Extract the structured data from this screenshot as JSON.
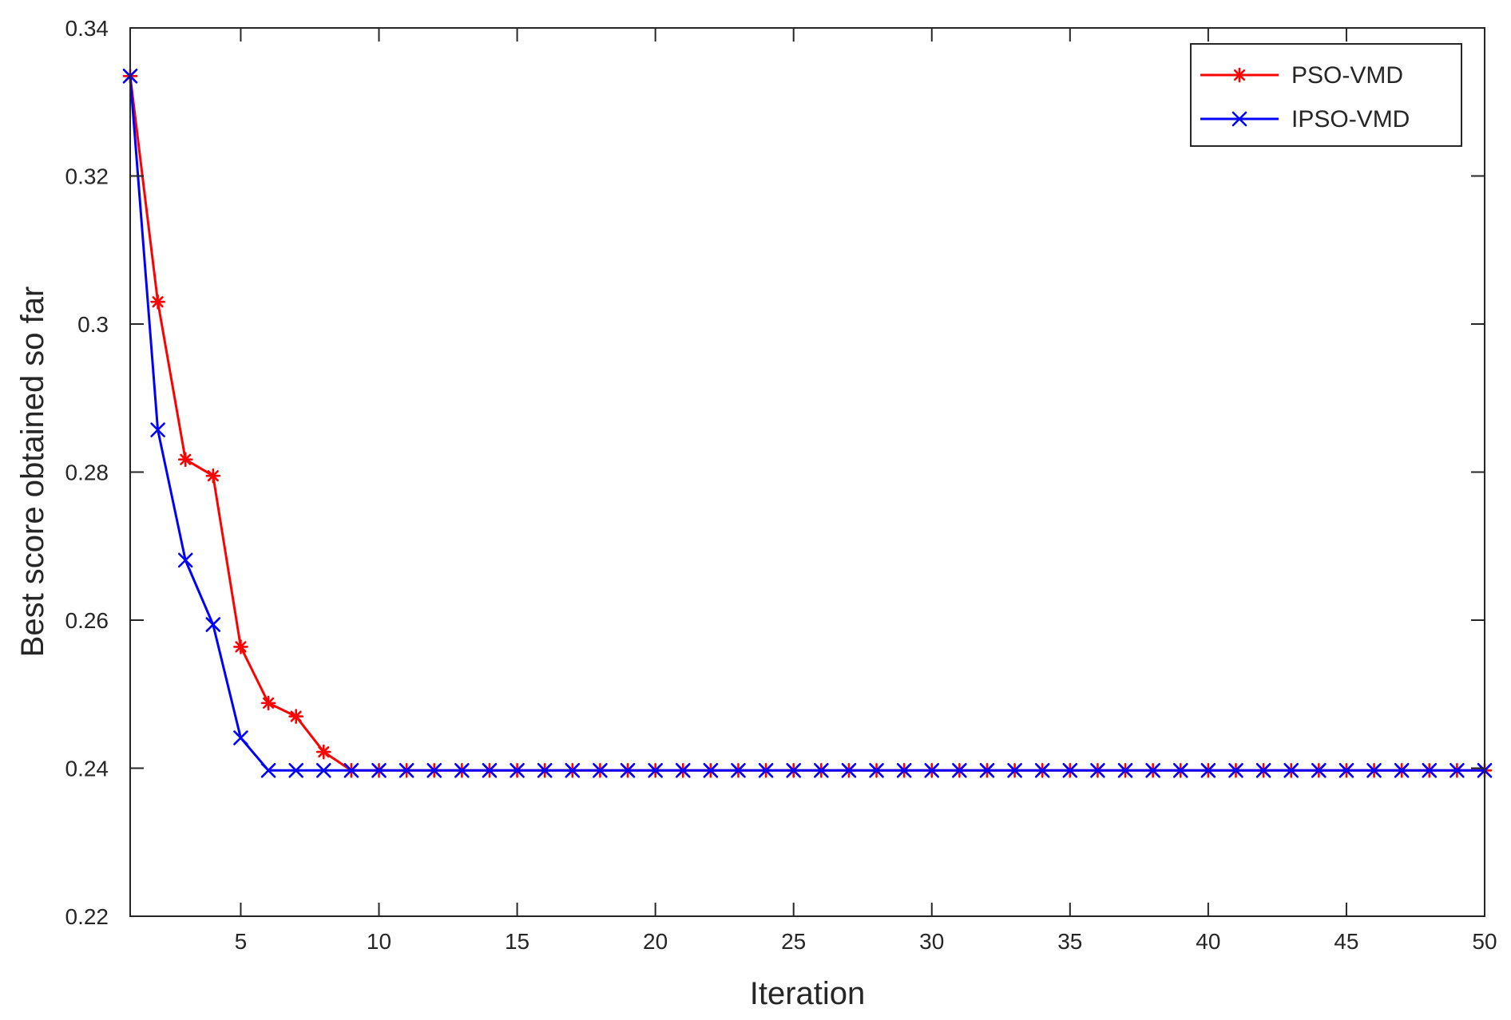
{
  "chart_data": {
    "type": "line",
    "title": "",
    "xlabel": "Iteration",
    "ylabel": "Best score obtained so far",
    "xlim": [
      1,
      50
    ],
    "ylim": [
      0.22,
      0.34
    ],
    "xticks": [
      5,
      10,
      15,
      20,
      25,
      30,
      35,
      40,
      45,
      50
    ],
    "yticks": [
      0.22,
      0.24,
      0.26,
      0.28,
      0.3,
      0.32,
      0.34
    ],
    "ytick_labels": [
      "0.22",
      "0.24",
      "0.26",
      "0.28",
      "0.3",
      "0.32",
      "0.34"
    ],
    "grid": false,
    "legend_position": "top-right",
    "series": [
      {
        "name": "PSO-VMD",
        "color": "#ff0000",
        "marker": "asterisk",
        "x": [
          1,
          2,
          3,
          4,
          5,
          6,
          7,
          8,
          9,
          10,
          11,
          12,
          13,
          14,
          15,
          16,
          17,
          18,
          19,
          20,
          21,
          22,
          23,
          24,
          25,
          26,
          27,
          28,
          29,
          30,
          31,
          32,
          33,
          34,
          35,
          36,
          37,
          38,
          39,
          40,
          41,
          42,
          43,
          44,
          45,
          46,
          47,
          48,
          49,
          50
        ],
        "y": [
          0.3335,
          0.303,
          0.2817,
          0.2795,
          0.2564,
          0.2488,
          0.247,
          0.2422,
          0.2397,
          0.2397,
          0.2397,
          0.2397,
          0.2397,
          0.2397,
          0.2397,
          0.2397,
          0.2397,
          0.2397,
          0.2397,
          0.2397,
          0.2397,
          0.2397,
          0.2397,
          0.2397,
          0.2397,
          0.2397,
          0.2397,
          0.2397,
          0.2397,
          0.2397,
          0.2397,
          0.2397,
          0.2397,
          0.2397,
          0.2397,
          0.2397,
          0.2397,
          0.2397,
          0.2397,
          0.2397,
          0.2397,
          0.2397,
          0.2397,
          0.2397,
          0.2397,
          0.2397,
          0.2397,
          0.2397,
          0.2397,
          0.2397
        ]
      },
      {
        "name": "IPSO-VMD",
        "color": "#0000ff",
        "marker": "x",
        "x": [
          1,
          2,
          3,
          4,
          5,
          6,
          7,
          8,
          9,
          10,
          11,
          12,
          13,
          14,
          15,
          16,
          17,
          18,
          19,
          20,
          21,
          22,
          23,
          24,
          25,
          26,
          27,
          28,
          29,
          30,
          31,
          32,
          33,
          34,
          35,
          36,
          37,
          38,
          39,
          40,
          41,
          42,
          43,
          44,
          45,
          46,
          47,
          48,
          49,
          50
        ],
        "y": [
          0.3335,
          0.2857,
          0.2681,
          0.2594,
          0.2441,
          0.2397,
          0.2397,
          0.2397,
          0.2397,
          0.2397,
          0.2397,
          0.2397,
          0.2397,
          0.2397,
          0.2397,
          0.2397,
          0.2397,
          0.2397,
          0.2397,
          0.2397,
          0.2397,
          0.2397,
          0.2397,
          0.2397,
          0.2397,
          0.2397,
          0.2397,
          0.2397,
          0.2397,
          0.2397,
          0.2397,
          0.2397,
          0.2397,
          0.2397,
          0.2397,
          0.2397,
          0.2397,
          0.2397,
          0.2397,
          0.2397,
          0.2397,
          0.2397,
          0.2397,
          0.2397,
          0.2397,
          0.2397,
          0.2397,
          0.2397,
          0.2397,
          0.2397
        ]
      }
    ]
  }
}
